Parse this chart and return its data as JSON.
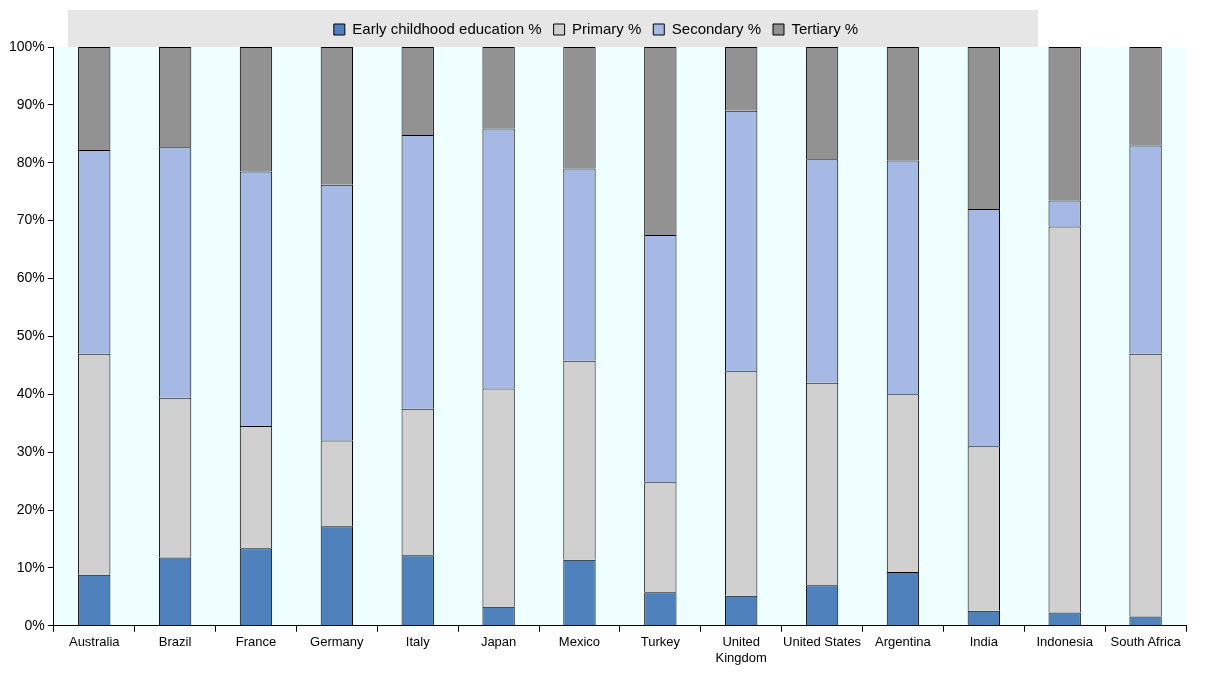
{
  "chart_data": {
    "type": "bar",
    "stacked": true,
    "legend": "top",
    "grid": false,
    "categories": [
      "Australia",
      "Brazil",
      "France",
      "Germany",
      "Italy",
      "Japan",
      "Mexico",
      "Turkey",
      "United Kingdom",
      "United States",
      "Argentina",
      "India",
      "Indonesia",
      "South Africa"
    ],
    "series": [
      {
        "name": "Early childhood education %",
        "color": "#4f81bd",
        "values": [
          8.8,
          11.8,
          13.4,
          17.2,
          12.2,
          3.3,
          11.4,
          5.8,
          5.2,
          7.0,
          9.3,
          2.6,
          2.3,
          1.6
        ]
      },
      {
        "name": "Primary %",
        "color": "#d0d0d0",
        "values": [
          38.2,
          27.6,
          21.1,
          14.8,
          25.3,
          37.7,
          34.4,
          19.0,
          38.8,
          35.0,
          30.7,
          28.4,
          66.7,
          45.4
        ]
      },
      {
        "name": "Secondary %",
        "color": "#a6b8e4",
        "values": [
          35.2,
          43.3,
          44.0,
          44.2,
          47.3,
          44.9,
          33.2,
          42.7,
          45.0,
          38.6,
          40.4,
          41.0,
          4.5,
          36.0
        ]
      },
      {
        "name": "Tertiary %",
        "color": "#929292",
        "values": [
          17.8,
          17.3,
          21.5,
          23.8,
          15.2,
          14.1,
          21.0,
          32.5,
          11.0,
          19.4,
          19.6,
          28.0,
          26.5,
          17.0
        ]
      }
    ],
    "ylim": [
      0,
      100
    ],
    "yticks": [
      {
        "value": 0,
        "label": "0%"
      },
      {
        "value": 10,
        "label": "10%"
      },
      {
        "value": 20,
        "label": "20%"
      },
      {
        "value": 30,
        "label": "30%"
      },
      {
        "value": 40,
        "label": "40%"
      },
      {
        "value": 50,
        "label": "50%"
      },
      {
        "value": 60,
        "label": "60%"
      },
      {
        "value": 70,
        "label": "70%"
      },
      {
        "value": 80,
        "label": "80%"
      },
      {
        "value": 90,
        "label": "90%"
      },
      {
        "value": 100,
        "label": "100%"
      }
    ]
  }
}
